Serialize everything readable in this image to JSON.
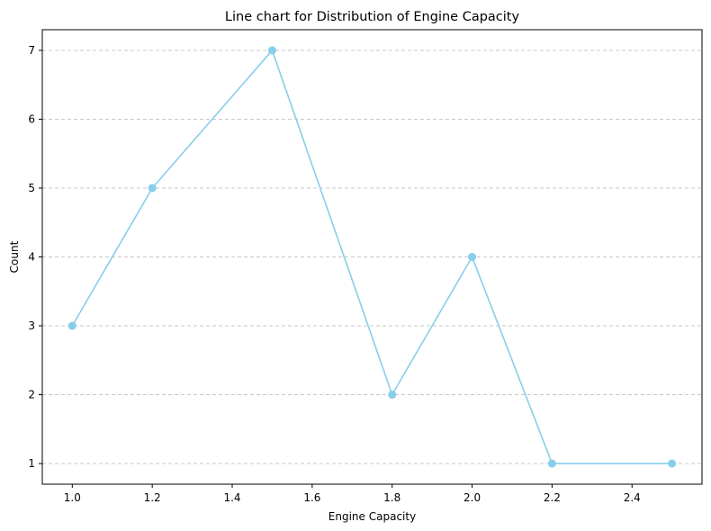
{
  "chart_data": {
    "type": "line",
    "title": "Line chart for Distribution of Engine Capacity",
    "xlabel": "Engine Capacity",
    "ylabel": "Count",
    "x": [
      1.0,
      1.2,
      1.5,
      1.8,
      2.0,
      2.2,
      2.5
    ],
    "series": [
      {
        "values": [
          3,
          5,
          7,
          2,
          4,
          1,
          1
        ],
        "color": "#87ceeb",
        "marker": "circle"
      }
    ],
    "xticks": [
      "1.0",
      "1.2",
      "1.4",
      "1.6",
      "1.8",
      "2.0",
      "2.2",
      "2.4"
    ],
    "yticks": [
      "1",
      "2",
      "3",
      "4",
      "5",
      "6",
      "7"
    ],
    "xlim": [
      0.925,
      2.575
    ],
    "ylim": [
      0.7,
      7.3
    ],
    "grid": {
      "x": false,
      "y": true,
      "style": "dashed",
      "color": "#c8c8c8"
    },
    "legend": "none"
  }
}
